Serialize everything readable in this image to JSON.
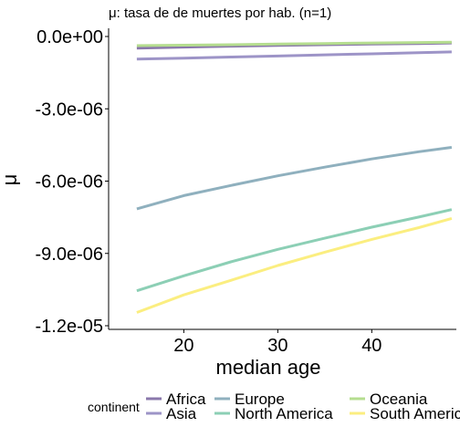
{
  "chart_data": {
    "type": "line",
    "title": "μ: tasa de de muertes por hab. (n=1)",
    "xlabel": "median age",
    "ylabel": "μ",
    "xlim": [
      12.0,
      49.0
    ],
    "ylim": [
      -1.2e-05,
      0.0
    ],
    "x_ticks": [
      20,
      30,
      40
    ],
    "x_tick_labels": [
      "20",
      "30",
      "40"
    ],
    "y_ticks": [
      0.0,
      -3e-06,
      -6e-06,
      -9e-06,
      -1.2e-05
    ],
    "y_tick_labels": [
      "0.0e+00",
      "-3.0e-06",
      "-6.0e-06",
      "-9.0e-06",
      "-1.2e-05"
    ],
    "grid": false,
    "legend": {
      "title": "continent",
      "position": "bottom",
      "entries": [
        "Africa",
        "Asia",
        "Europe",
        "North America",
        "Oceania",
        "South America"
      ]
    },
    "series": [
      {
        "name": "Africa",
        "color": "#8a78ab",
        "x": [
          15,
          20,
          25,
          30,
          35,
          40,
          45,
          48.5
        ],
        "y": [
          -4.8e-07,
          -4.4e-07,
          -4e-07,
          -3.7e-07,
          -3.4e-07,
          -3.1e-07,
          -2.9e-07,
          -2.7e-07
        ]
      },
      {
        "name": "Asia",
        "color": "#9d94c7",
        "x": [
          15,
          20,
          25,
          30,
          35,
          40,
          45,
          48.5
        ],
        "y": [
          -9.4e-07,
          -9e-07,
          -8.5e-07,
          -8.1e-07,
          -7.6e-07,
          -7.2e-07,
          -6.7e-07,
          -6.4e-07
        ]
      },
      {
        "name": "Europe",
        "color": "#8fb0be",
        "x": [
          15,
          20,
          25,
          30,
          35,
          40,
          45,
          48.5
        ],
        "y": [
          -7.15e-06,
          -6.6e-06,
          -6.18e-06,
          -5.78e-06,
          -5.42e-06,
          -5.08e-06,
          -4.78e-06,
          -4.6e-06
        ]
      },
      {
        "name": "North America",
        "color": "#8ccfb5",
        "x": [
          15,
          20,
          25,
          30,
          35,
          40,
          45,
          48.5
        ],
        "y": [
          -1.055e-05,
          -9.93e-06,
          -9.35e-06,
          -8.83e-06,
          -8.37e-06,
          -7.91e-06,
          -7.49e-06,
          -7.18e-06
        ]
      },
      {
        "name": "Oceania",
        "color": "#b5dd8f",
        "x": [
          15,
          20,
          25,
          30,
          35,
          40,
          45,
          48.5
        ],
        "y": [
          -3.8e-07,
          -3.6e-07,
          -3.4e-07,
          -3.1e-07,
          -2.9e-07,
          -2.7e-07,
          -2.5e-07,
          -2.4e-07
        ]
      },
      {
        "name": "South America",
        "color": "#fbee80",
        "x": [
          15,
          20,
          25,
          30,
          35,
          40,
          45,
          48.5
        ],
        "y": [
          -1.145e-05,
          -1.072e-05,
          -1.012e-05,
          -9.5e-06,
          -8.95e-06,
          -8.42e-06,
          -7.93e-06,
          -7.55e-06
        ]
      }
    ]
  }
}
